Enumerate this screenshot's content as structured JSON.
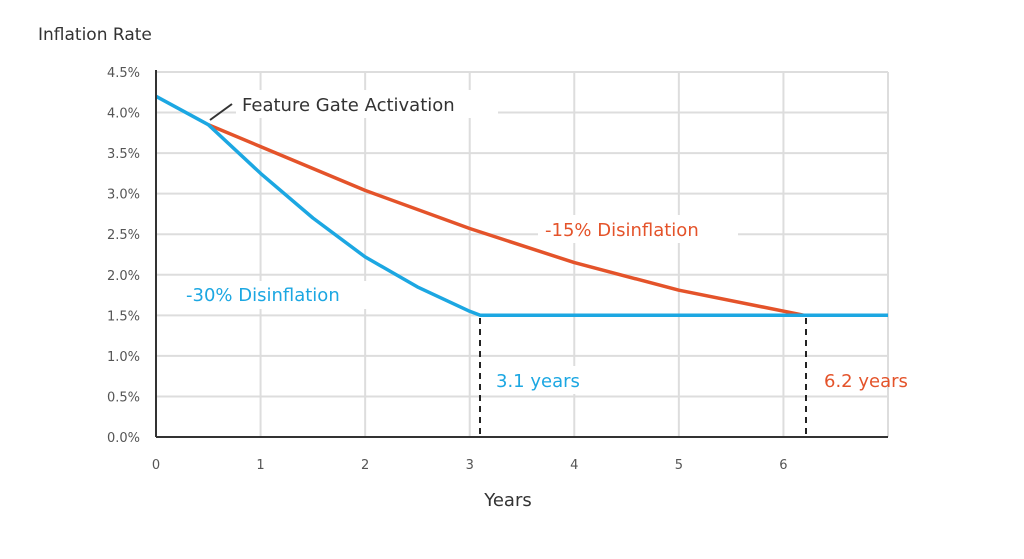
{
  "chart_data": {
    "type": "line",
    "ylabel": "Inflation Rate",
    "xlabel": "Years",
    "xlim": [
      0,
      7
    ],
    "ylim": [
      0,
      4.5
    ],
    "x_ticks": [
      "0",
      "1",
      "2",
      "3",
      "4",
      "5",
      "6"
    ],
    "y_ticks": [
      "0.0%",
      "0.5%",
      "1.0%",
      "1.5%",
      "2.0%",
      "2.5%",
      "3.0%",
      "3.5%",
      "4.0%",
      "4.5%"
    ],
    "grid": true,
    "colors": {
      "blue": "#1ca7e2",
      "red": "#e4532a",
      "grid": "#dddddd"
    },
    "series": [
      {
        "name": "-30% Disinflation",
        "color": "#1ca7e2",
        "points": [
          [
            0,
            4.2
          ],
          [
            0.5,
            3.85
          ],
          [
            1,
            3.25
          ],
          [
            1.5,
            2.7
          ],
          [
            2,
            2.22
          ],
          [
            2.5,
            1.85
          ],
          [
            3,
            1.55
          ],
          [
            3.1,
            1.5
          ],
          [
            7,
            1.5
          ]
        ]
      },
      {
        "name": "-15% Disinflation",
        "color": "#e4532a",
        "points": [
          [
            0.5,
            3.85
          ],
          [
            1,
            3.58
          ],
          [
            2,
            3.04
          ],
          [
            3,
            2.57
          ],
          [
            4,
            2.15
          ],
          [
            5,
            1.81
          ],
          [
            6.2,
            1.5
          ]
        ]
      }
    ],
    "annotations": [
      {
        "text": "Feature Gate Activation",
        "x": 0.5,
        "y": 3.85,
        "color": "#333333"
      },
      {
        "text": "3.1 years",
        "x": 3.1,
        "color": "#1ca7e2"
      },
      {
        "text": "6.2 years",
        "x": 6.2,
        "color": "#e4532a"
      }
    ]
  }
}
